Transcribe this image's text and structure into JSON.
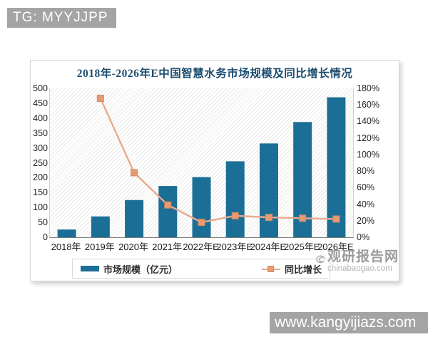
{
  "overlays": {
    "top_left_badge": "TG: MYYJJPP",
    "bottom_right_badge": "www.kangyijiazs.com"
  },
  "watermark": {
    "name": "观研报告网",
    "domain": "chinabaogao.com"
  },
  "chart_data": {
    "type": "bar",
    "subtype": "bar-line-combo",
    "title": "2018年-2026年E中国智慧水务市场规模及同比增长情况",
    "categories": [
      "2018年",
      "2019年",
      "2020年",
      "2021年",
      "2022年E",
      "2023年E",
      "2024年E",
      "2025年E",
      "2026年E"
    ],
    "series": [
      {
        "name": "市场规模（亿元）",
        "type": "bar",
        "axis": "left",
        "color": "#1b6f96",
        "values": [
          26,
          70,
          125,
          172,
          202,
          255,
          315,
          387,
          470
        ]
      },
      {
        "name": "同比增长",
        "type": "line",
        "axis": "right",
        "color": "#e9a98c",
        "marker_color": "#e89b72",
        "unit": "%",
        "values": [
          null,
          168,
          78,
          39,
          18,
          26,
          24,
          23,
          22
        ]
      }
    ],
    "left_axis": {
      "min": 0,
      "max": 500,
      "ticks": [
        "0",
        "50",
        "100",
        "150",
        "200",
        "250",
        "300",
        "350",
        "400",
        "450",
        "500"
      ]
    },
    "right_axis": {
      "min": 0,
      "max": 180,
      "ticks": [
        "0%",
        "20%",
        "40%",
        "60%",
        "80%",
        "100%",
        "120%",
        "140%",
        "160%",
        "180%"
      ]
    },
    "legend_position": "bottom",
    "grid": false,
    "plot_background": "diagonal-hatch"
  }
}
